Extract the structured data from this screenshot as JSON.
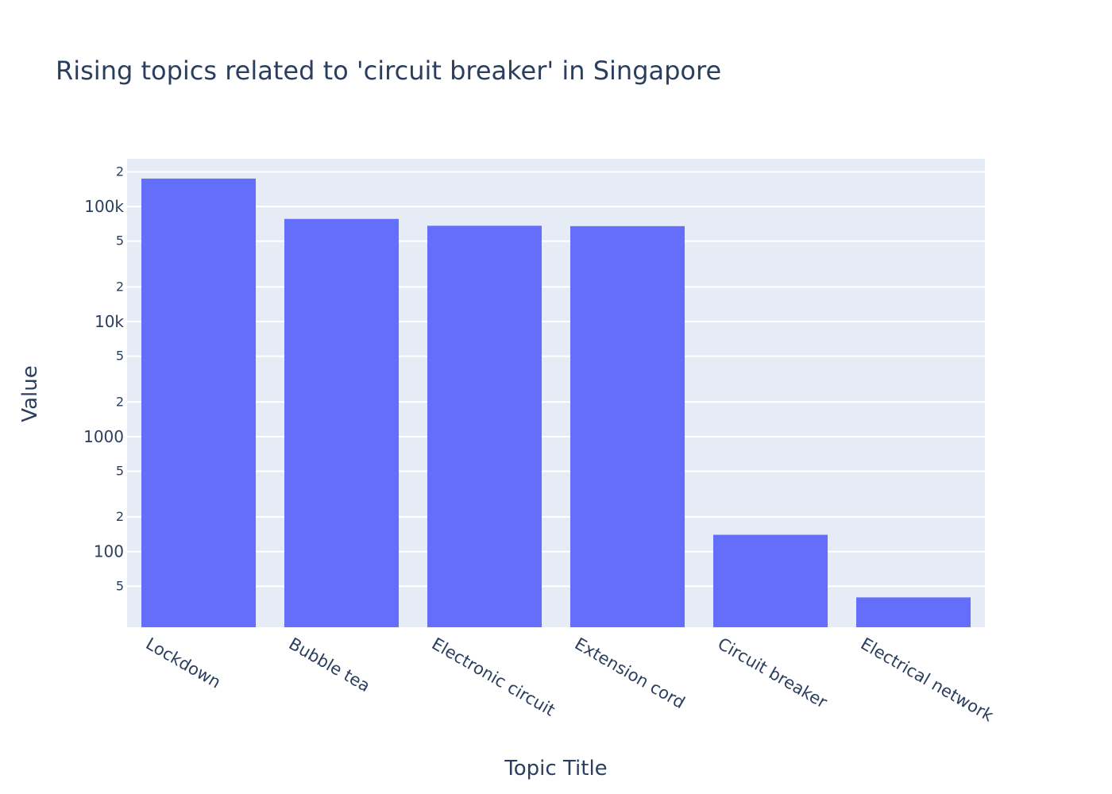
{
  "chart_data": {
    "type": "bar",
    "title": "Rising topics related to 'circuit breaker' in Singapore",
    "xlabel": "Topic Title",
    "ylabel": "Value",
    "yscale": "log",
    "ylim": [
      22,
      260000
    ],
    "categories": [
      "Lockdown",
      "Bubble tea",
      "Electronic circuit",
      "Extension cord",
      "Circuit breaker",
      "Electrical network"
    ],
    "values": [
      175000,
      78000,
      68000,
      67500,
      140,
      40
    ],
    "y_major_ticks": [
      {
        "value": 100,
        "label": "100"
      },
      {
        "value": 1000,
        "label": "1000"
      },
      {
        "value": 10000,
        "label": "10k"
      },
      {
        "value": 100000,
        "label": "100k"
      }
    ],
    "y_minor_ticks": [
      {
        "value": 50,
        "label": "5"
      },
      {
        "value": 200,
        "label": "2"
      },
      {
        "value": 500,
        "label": "5"
      },
      {
        "value": 2000,
        "label": "2"
      },
      {
        "value": 5000,
        "label": "5"
      },
      {
        "value": 20000,
        "label": "2"
      },
      {
        "value": 50000,
        "label": "5"
      },
      {
        "value": 200000,
        "label": "2"
      }
    ],
    "grid": true,
    "colors": {
      "bar": "#636efa",
      "plot_bg": "#e5ecf6",
      "grid": "#ffffff",
      "text": "#2a3f5f"
    }
  }
}
